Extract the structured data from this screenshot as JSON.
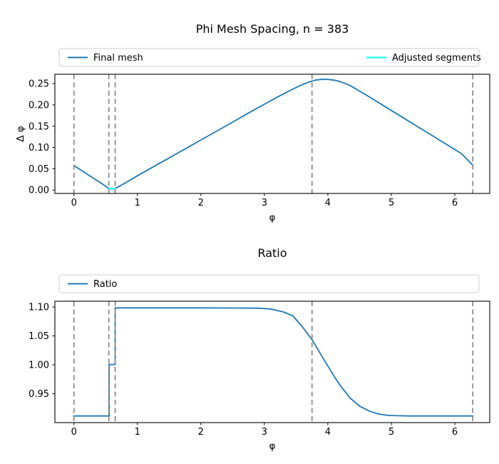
{
  "figure": {
    "background": "#ffffff",
    "text_color": "#000000"
  },
  "chart_data": [
    {
      "type": "line",
      "title": "Phi Mesh Spacing, n = 383",
      "xlabel": "φ",
      "ylabel": "Δ φ",
      "xlim": [
        -0.3,
        6.55
      ],
      "ylim": [
        -0.008,
        0.272
      ],
      "xticks": [
        0,
        1,
        2,
        3,
        4,
        5,
        6
      ],
      "xtick_labels": [
        "0",
        "1",
        "2",
        "3",
        "4",
        "5",
        "6"
      ],
      "yticks": [
        0.0,
        0.05,
        0.1,
        0.15,
        0.2,
        0.25
      ],
      "ytick_labels": [
        "0.00",
        "0.05",
        "0.10",
        "0.15",
        "0.20",
        "0.25"
      ],
      "grid": false,
      "legend_position": "above plot, full-width box, 2 columns",
      "vlines": {
        "x": [
          0,
          0.55,
          0.65,
          3.75,
          6.283
        ],
        "style": "dashed",
        "color": "#8c8c8c"
      },
      "series": [
        {
          "name": "Final mesh",
          "color": "#1f77b4",
          "x": [
            0,
            0.15,
            0.3,
            0.45,
            0.55,
            0.6,
            0.65,
            0.8,
            1.0,
            1.25,
            1.5,
            1.75,
            2.0,
            2.25,
            2.5,
            2.75,
            3.0,
            3.2,
            3.4,
            3.55,
            3.7,
            3.8,
            3.9,
            4.0,
            4.1,
            4.2,
            4.35,
            4.6,
            4.9,
            5.2,
            5.5,
            5.8,
            6.1,
            6.283
          ],
          "y": [
            0.0575,
            0.043,
            0.0285,
            0.014,
            0.0035,
            0.003,
            0.0035,
            0.016,
            0.0335,
            0.0545,
            0.0755,
            0.0965,
            0.1175,
            0.1385,
            0.1595,
            0.181,
            0.2015,
            0.218,
            0.2335,
            0.2445,
            0.2535,
            0.258,
            0.26,
            0.26,
            0.258,
            0.2545,
            0.2455,
            0.2235,
            0.196,
            0.1685,
            0.141,
            0.1135,
            0.086,
            0.0585
          ]
        },
        {
          "name": "Adjusted segments",
          "color": "#00ffff",
          "x": [
            0.55,
            0.65
          ],
          "y": [
            0.003,
            0.003
          ]
        }
      ]
    },
    {
      "type": "line",
      "title": "Ratio",
      "xlabel": "φ",
      "ylabel": "",
      "xlim": [
        -0.3,
        6.55
      ],
      "ylim": [
        0.9,
        1.11
      ],
      "xticks": [
        0,
        1,
        2,
        3,
        4,
        5,
        6
      ],
      "xtick_labels": [
        "0",
        "1",
        "2",
        "3",
        "4",
        "5",
        "6"
      ],
      "yticks": [
        0.95,
        1.0,
        1.05,
        1.1
      ],
      "ytick_labels": [
        "0.95",
        "1.00",
        "1.05",
        "1.10"
      ],
      "grid": false,
      "legend_position": "above plot, full-width box, 1 entry left-aligned",
      "vlines": {
        "x": [
          0,
          0.55,
          0.65,
          3.75,
          6.283
        ],
        "style": "dashed",
        "color": "#8c8c8c"
      },
      "series": [
        {
          "name": "Ratio",
          "color": "#1f77b4",
          "x": [
            0,
            0.54,
            0.555,
            0.555,
            0.645,
            0.65,
            0.65,
            1.0,
            1.5,
            2.0,
            2.5,
            2.9,
            3.1,
            3.3,
            3.45,
            3.6,
            3.75,
            3.9,
            4.0,
            4.1,
            4.2,
            4.35,
            4.5,
            4.65,
            4.8,
            4.95,
            5.1,
            5.3,
            5.6,
            6.0,
            6.283
          ],
          "y": [
            0.9115,
            0.9115,
            0.9115,
            1.0005,
            1.0005,
            1.0005,
            1.0985,
            1.0985,
            1.0985,
            1.0985,
            1.0983,
            1.098,
            1.0965,
            1.0915,
            1.0845,
            1.0655,
            1.0435,
            1.016,
            0.998,
            0.98,
            0.9635,
            0.9425,
            0.9285,
            0.92,
            0.9148,
            0.9125,
            0.9118,
            0.9115,
            0.9115,
            0.9115,
            0.9115
          ]
        }
      ]
    }
  ]
}
